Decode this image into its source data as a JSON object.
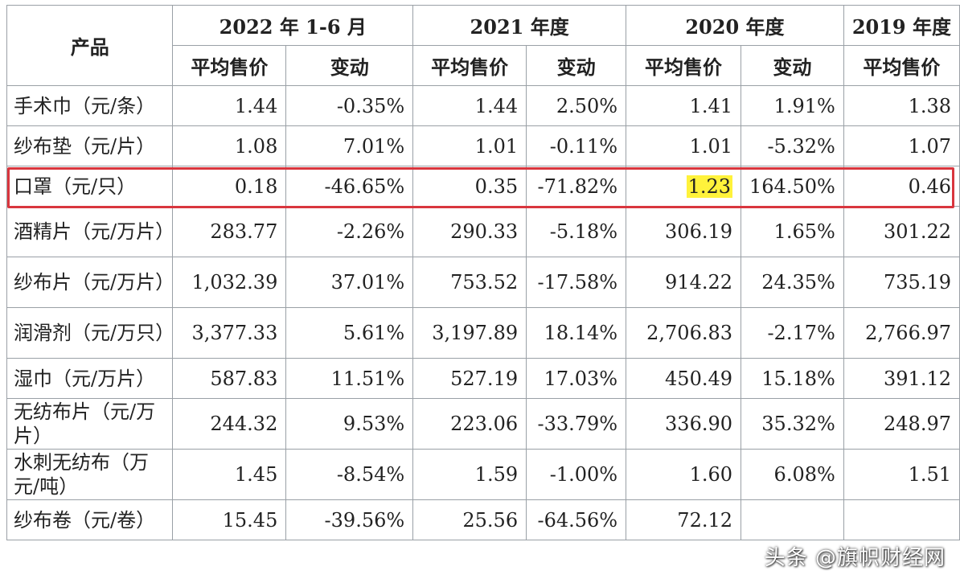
{
  "header": {
    "product": "产品",
    "periods": [
      "2022 年 1-6 月",
      "2021 年度",
      "2020 年度",
      "2019 年度"
    ],
    "avg_price": "平均售价",
    "change": "变动"
  },
  "rows": [
    {
      "name": "手术巾（元/条）",
      "v": [
        "1.44",
        "-0.35%",
        "1.44",
        "2.50%",
        "1.41",
        "1.91%",
        "1.38"
      ]
    },
    {
      "name": "纱布垫（元/片）",
      "v": [
        "1.08",
        "7.01%",
        "1.01",
        "-0.11%",
        "1.01",
        "-5.32%",
        "1.07"
      ]
    },
    {
      "name": "口罩（元/只）",
      "v": [
        "0.18",
        "-46.65%",
        "0.35",
        "-71.82%",
        "1.23",
        "164.50%",
        "0.46"
      ]
    },
    {
      "name": "酒精片（元/万片）",
      "v": [
        "283.77",
        "-2.26%",
        "290.33",
        "-5.18%",
        "306.19",
        "1.65%",
        "301.22"
      ]
    },
    {
      "name": "纱布片（元/万片）",
      "v": [
        "1,032.39",
        "37.01%",
        "753.52",
        "-17.58%",
        "914.22",
        "24.35%",
        "735.19"
      ]
    },
    {
      "name": "润滑剂（元/万只）",
      "v": [
        "3,377.33",
        "5.61%",
        "3,197.89",
        "18.14%",
        "2,706.83",
        "-2.17%",
        "2,766.97"
      ]
    },
    {
      "name": "湿巾（元/万片）",
      "v": [
        "587.83",
        "11.51%",
        "527.19",
        "17.03%",
        "450.49",
        "15.18%",
        "391.12"
      ]
    },
    {
      "name": "无纺布片（元/万片）",
      "v": [
        "244.32",
        "9.53%",
        "223.06",
        "-33.79%",
        "336.90",
        "35.32%",
        "248.97"
      ]
    },
    {
      "name": "水刺无纺布（万元/吨）",
      "v": [
        "1.45",
        "-8.54%",
        "1.59",
        "-1.00%",
        "1.60",
        "6.08%",
        "1.51"
      ]
    },
    {
      "name": "纱布卷（元/卷）",
      "v": [
        "15.45",
        "-39.56%",
        "25.56",
        "-64.56%",
        "72.12",
        "",
        ""
      ]
    }
  ],
  "highlight": {
    "row": 2,
    "cell": 4,
    "row_border_color": "#d9363e",
    "cell_fill_color": "#fff23b"
  },
  "watermark": "头条 @旗帜财经网"
}
